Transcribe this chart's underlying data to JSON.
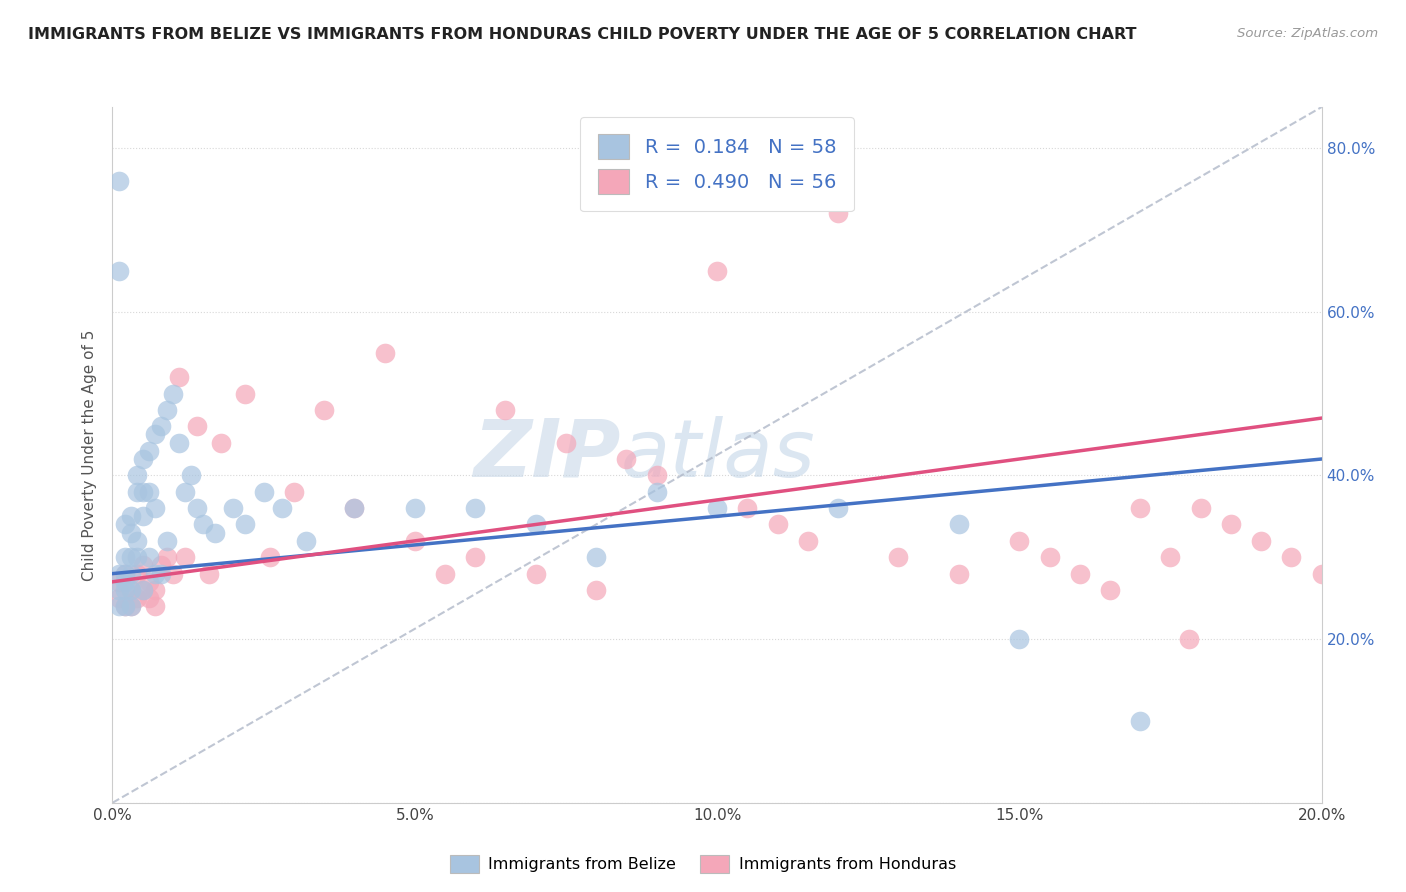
{
  "title": "IMMIGRANTS FROM BELIZE VS IMMIGRANTS FROM HONDURAS CHILD POVERTY UNDER THE AGE OF 5 CORRELATION CHART",
  "source": "Source: ZipAtlas.com",
  "ylabel": "Child Poverty Under the Age of 5",
  "legend_label_belize": "Immigrants from Belize",
  "legend_label_honduras": "Immigrants from Honduras",
  "R_belize": 0.184,
  "N_belize": 58,
  "R_honduras": 0.49,
  "N_honduras": 56,
  "color_belize": "#a8c4e0",
  "color_honduras": "#f4a7b9",
  "line_color_belize": "#4472c4",
  "line_color_honduras": "#e05080",
  "watermark": "ZIPAtlas",
  "watermark_color": "#c8d8e8",
  "xlim": [
    0.0,
    0.2
  ],
  "ylim": [
    0.0,
    0.85
  ],
  "xticks": [
    0.0,
    0.05,
    0.1,
    0.15,
    0.2
  ],
  "xtick_labels": [
    "0.0%",
    "5.0%",
    "10.0%",
    "15.0%",
    "20.0%"
  ],
  "yticks": [
    0.0,
    0.2,
    0.4,
    0.6,
    0.8
  ],
  "ytick_labels_right": [
    "",
    "20.0%",
    "40.0%",
    "60.0%",
    "80.0%"
  ],
  "background_color": "#ffffff",
  "grid_color": "#d8d8d8",
  "tick_color": "#4472c4",
  "belize_x": [
    0.001,
    0.001,
    0.001,
    0.001,
    0.001,
    0.002,
    0.002,
    0.002,
    0.002,
    0.002,
    0.002,
    0.003,
    0.003,
    0.003,
    0.003,
    0.003,
    0.003,
    0.004,
    0.004,
    0.004,
    0.004,
    0.005,
    0.005,
    0.005,
    0.005,
    0.006,
    0.006,
    0.006,
    0.007,
    0.007,
    0.007,
    0.008,
    0.008,
    0.009,
    0.009,
    0.01,
    0.011,
    0.012,
    0.013,
    0.014,
    0.015,
    0.017,
    0.02,
    0.022,
    0.025,
    0.028,
    0.032,
    0.04,
    0.05,
    0.06,
    0.07,
    0.08,
    0.09,
    0.1,
    0.12,
    0.14,
    0.15,
    0.17
  ],
  "belize_y": [
    0.76,
    0.65,
    0.28,
    0.26,
    0.24,
    0.34,
    0.3,
    0.28,
    0.27,
    0.26,
    0.24,
    0.35,
    0.33,
    0.3,
    0.28,
    0.26,
    0.24,
    0.4,
    0.38,
    0.32,
    0.3,
    0.42,
    0.38,
    0.35,
    0.26,
    0.43,
    0.38,
    0.3,
    0.45,
    0.36,
    0.28,
    0.46,
    0.28,
    0.48,
    0.32,
    0.5,
    0.44,
    0.38,
    0.4,
    0.36,
    0.34,
    0.33,
    0.36,
    0.34,
    0.38,
    0.36,
    0.32,
    0.36,
    0.36,
    0.36,
    0.34,
    0.3,
    0.38,
    0.36,
    0.36,
    0.34,
    0.2,
    0.1
  ],
  "honduras_x": [
    0.001,
    0.001,
    0.002,
    0.002,
    0.003,
    0.003,
    0.004,
    0.004,
    0.005,
    0.005,
    0.006,
    0.006,
    0.007,
    0.007,
    0.008,
    0.009,
    0.01,
    0.011,
    0.012,
    0.014,
    0.016,
    0.018,
    0.022,
    0.026,
    0.03,
    0.035,
    0.04,
    0.045,
    0.05,
    0.055,
    0.06,
    0.065,
    0.07,
    0.075,
    0.08,
    0.085,
    0.09,
    0.1,
    0.105,
    0.11,
    0.115,
    0.12,
    0.13,
    0.14,
    0.15,
    0.155,
    0.16,
    0.165,
    0.17,
    0.175,
    0.178,
    0.18,
    0.185,
    0.19,
    0.195,
    0.2
  ],
  "honduras_y": [
    0.27,
    0.25,
    0.28,
    0.24,
    0.26,
    0.24,
    0.28,
    0.25,
    0.29,
    0.26,
    0.27,
    0.25,
    0.26,
    0.24,
    0.29,
    0.3,
    0.28,
    0.52,
    0.3,
    0.46,
    0.28,
    0.44,
    0.5,
    0.3,
    0.38,
    0.48,
    0.36,
    0.55,
    0.32,
    0.28,
    0.3,
    0.48,
    0.28,
    0.44,
    0.26,
    0.42,
    0.4,
    0.65,
    0.36,
    0.34,
    0.32,
    0.72,
    0.3,
    0.28,
    0.32,
    0.3,
    0.28,
    0.26,
    0.36,
    0.3,
    0.2,
    0.36,
    0.34,
    0.32,
    0.3,
    0.28
  ]
}
